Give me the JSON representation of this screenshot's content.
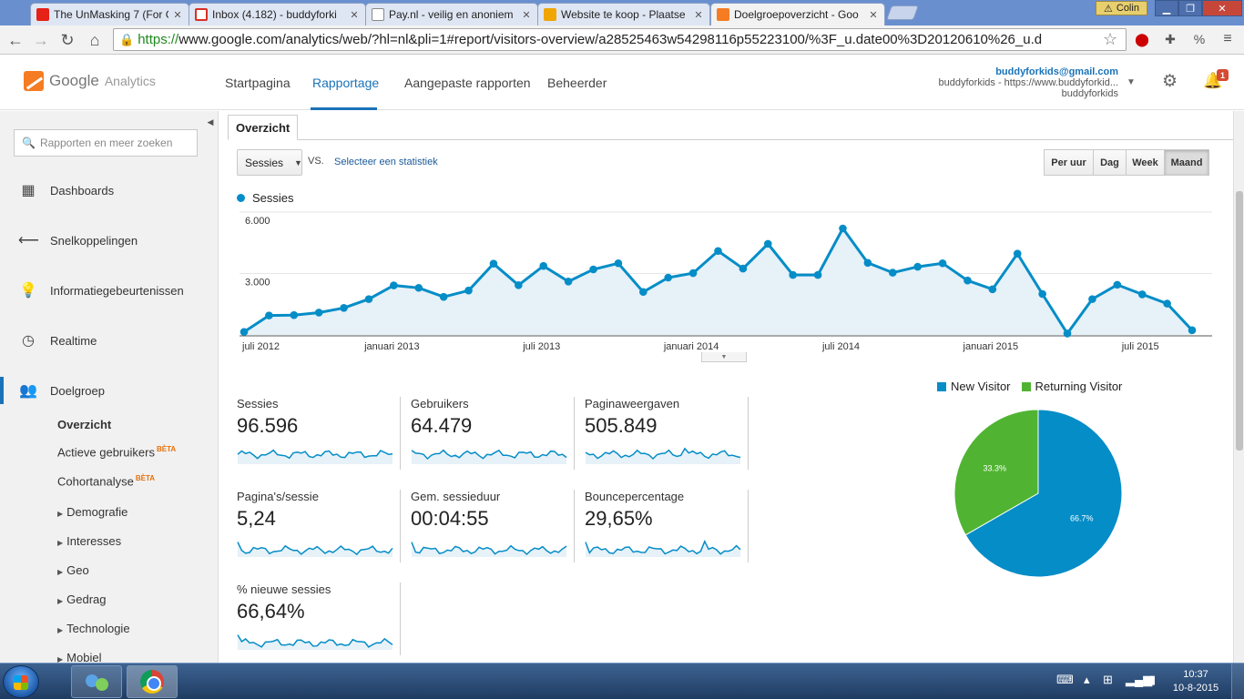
{
  "browser": {
    "tabs": [
      {
        "title": "The UnMasking 7 (For Ger",
        "favicon_color": "#e62117",
        "icon": "youtube-icon"
      },
      {
        "title": "Inbox (4.182) - buddyforki",
        "favicon_color": "#d93025",
        "icon": "gmail-icon"
      },
      {
        "title": "Pay.nl - veilig en anoniem",
        "favicon_color": "#ffffff",
        "icon": "page-icon"
      },
      {
        "title": "Website te koop - Plaatse",
        "favicon_color": "#f0a500",
        "icon": "site-icon"
      },
      {
        "title": "Doelgroepoverzicht - Goo",
        "favicon_color": "#f57c22",
        "icon": "analytics-icon"
      }
    ],
    "user": "Colin",
    "url_https": "https://",
    "url_rest": "www.google.com/analytics/web/?hl=nl&pli=1#report/visitors-overview/a28525463w54298116p55223100/%3F_u.date00%3D20120610%26_u.d"
  },
  "header": {
    "logo_google": "Google",
    "logo_analytics": "Analytics",
    "nav": [
      "Startpagina",
      "Rapportage",
      "Aangepaste rapporten",
      "Beheerder"
    ],
    "active_nav": "Rapportage",
    "account_email": "buddyforkids@gmail.com",
    "account_line2": "buddyforkids - https://www.buddyforkid...",
    "account_line3": "buddyforkids",
    "notification_count": "1"
  },
  "sidebar": {
    "search_placeholder": "Rapporten en meer zoeken",
    "items": [
      {
        "label": "Dashboards",
        "icon": "grid-icon"
      },
      {
        "label": "Snelkoppelingen",
        "icon": "shortcut-arrow-icon"
      },
      {
        "label": "Informatiegebeurtenissen",
        "icon": "lightbulb-icon"
      },
      {
        "label": "Realtime",
        "icon": "clock-icon"
      },
      {
        "label": "Doelgroep",
        "icon": "people-icon"
      }
    ],
    "sub_items": {
      "overzicht": "Overzicht",
      "actieve": "Actieve gebruikers",
      "cohort": "Cohortanalyse",
      "beta": "BÈTA",
      "demografie": "Demografie",
      "interesses": "Interesses",
      "geo": "Geo",
      "gedrag": "Gedrag",
      "technologie": "Technologie",
      "mobiel": "Mobiel"
    }
  },
  "report": {
    "tab": "Overzicht",
    "metric_select": "Sessies",
    "vs": "VS.",
    "select_stat": "Selecteer een statistiek",
    "periods": [
      "Per uur",
      "Dag",
      "Week",
      "Maand"
    ],
    "active_period": "Maand"
  },
  "chart_data": {
    "type": "line",
    "series": [
      {
        "name": "Sessies",
        "values": [
          150,
          950,
          970,
          1090,
          1320,
          1750,
          2420,
          2300,
          1860,
          2170,
          3480,
          2430,
          3370,
          2610,
          3200,
          3500,
          2100,
          2800,
          3020,
          4100,
          3240,
          4450,
          2930,
          2930,
          5200,
          3520,
          3040,
          3330,
          3500,
          2660,
          2230,
          3970,
          2000,
          70,
          1750,
          2450,
          1980,
          1530,
          230
        ]
      }
    ],
    "x_tick_labels": [
      "juli 2012",
      "januari 2013",
      "juli 2013",
      "januari 2014",
      "juli 2014",
      "januari 2015",
      "juli 2015"
    ],
    "x_tick_index": [
      0,
      6,
      12,
      18,
      24,
      30,
      36
    ],
    "y_tick_labels": [
      "6.000",
      "3.000"
    ],
    "y_tick_values": [
      6000,
      3000
    ],
    "ylim": [
      0,
      6000
    ],
    "color": "#058dc7",
    "fill": "#e6f1f8"
  },
  "metrics": [
    {
      "label": "Sessies",
      "value": "96.596"
    },
    {
      "label": "Gebruikers",
      "value": "64.479"
    },
    {
      "label": "Paginaweergaven",
      "value": "505.849"
    },
    {
      "label": "Pagina's/sessie",
      "value": "5,24"
    },
    {
      "label": "Gem. sessieduur",
      "value": "00:04:55"
    },
    {
      "label": "Bouncepercentage",
      "value": "29,65%"
    },
    {
      "label": "% nieuwe sessies",
      "value": "66,64%"
    }
  ],
  "pie": {
    "type": "pie",
    "slices": [
      {
        "name": "New Visitor",
        "value": 66.7,
        "label": "66.7%",
        "color": "#058dc7"
      },
      {
        "name": "Returning Visitor",
        "value": 33.3,
        "label": "33.3%",
        "color": "#50b432"
      }
    ]
  },
  "taskbar": {
    "time": "10:37",
    "date": "10-8-2015"
  }
}
